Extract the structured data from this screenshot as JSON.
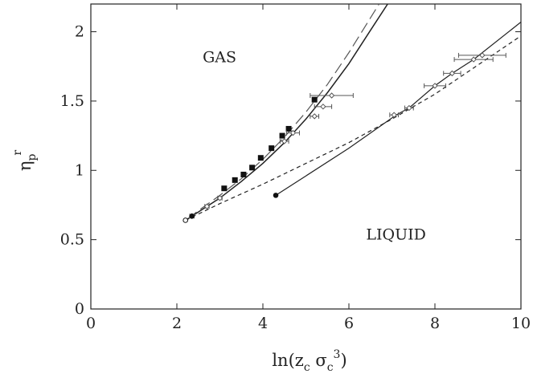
{
  "chart_data": {
    "type": "scatter",
    "xlabel": {
      "base": "ln(z",
      "sub1": "c",
      "mid": " σ",
      "sub2": "c",
      "sup": "3",
      "end": ")"
    },
    "ylabel": {
      "base": "η",
      "sub": "p",
      "sup": "r"
    },
    "xlim": [
      0,
      10
    ],
    "ylim": [
      0,
      2.2
    ],
    "xticks": [
      0,
      2,
      4,
      6,
      8,
      10
    ],
    "yticks": [
      0,
      0.5,
      1,
      1.5,
      2
    ],
    "xtick_labels": [
      "0",
      "2",
      "4",
      "6",
      "8",
      "10"
    ],
    "ytick_labels": [
      "0",
      "0.5",
      "1",
      "1.5",
      "2"
    ],
    "grid": false,
    "regions": [
      {
        "text": "GAS",
        "x": 2.6,
        "y": 1.78
      },
      {
        "text": "LIQUID",
        "x": 6.4,
        "y": 0.5
      }
    ],
    "series": [
      {
        "style": "solid-curve",
        "color": "#222222",
        "points": [
          [
            2.25,
            0.65
          ],
          [
            2.5,
            0.7
          ],
          [
            3.0,
            0.8
          ],
          [
            3.5,
            0.92
          ],
          [
            4.0,
            1.05
          ],
          [
            4.5,
            1.2
          ],
          [
            5.0,
            1.37
          ],
          [
            5.5,
            1.56
          ],
          [
            6.0,
            1.77
          ],
          [
            6.5,
            2.01
          ],
          [
            6.9,
            2.2
          ]
        ]
      },
      {
        "style": "long-dash-curve",
        "color": "#555555",
        "points": [
          [
            2.25,
            0.65
          ],
          [
            2.5,
            0.71
          ],
          [
            3.0,
            0.82
          ],
          [
            3.5,
            0.94
          ],
          [
            4.0,
            1.08
          ],
          [
            4.5,
            1.24
          ],
          [
            5.0,
            1.42
          ],
          [
            5.5,
            1.62
          ],
          [
            6.0,
            1.85
          ],
          [
            6.5,
            2.1
          ],
          [
            6.7,
            2.2
          ]
        ]
      },
      {
        "style": "short-dash-curve",
        "color": "#222222",
        "points": [
          [
            2.2,
            0.64
          ],
          [
            3.0,
            0.76
          ],
          [
            4.0,
            0.9
          ],
          [
            5.0,
            1.05
          ],
          [
            6.0,
            1.2
          ],
          [
            7.0,
            1.37
          ],
          [
            8.0,
            1.55
          ],
          [
            9.0,
            1.76
          ],
          [
            10.0,
            1.97
          ]
        ]
      },
      {
        "style": "solid-line-markers",
        "color": "#222222",
        "points": [
          [
            4.3,
            0.82
          ],
          [
            5.0,
            0.96
          ],
          [
            6.0,
            1.16
          ],
          [
            7.1,
            1.4
          ],
          [
            7.4,
            1.45
          ],
          [
            8.0,
            1.61
          ],
          [
            8.4,
            1.7
          ],
          [
            8.9,
            1.8
          ],
          [
            10.0,
            2.07
          ]
        ]
      },
      {
        "style": "filled-squares",
        "color": "#111111",
        "points": [
          [
            3.1,
            0.87
          ],
          [
            3.35,
            0.93
          ],
          [
            3.55,
            0.97
          ],
          [
            3.75,
            1.02
          ],
          [
            3.95,
            1.09
          ],
          [
            4.2,
            1.16
          ],
          [
            4.45,
            1.25
          ],
          [
            4.6,
            1.3
          ],
          [
            5.2,
            1.51
          ]
        ]
      },
      {
        "style": "open-diamonds-errorbars",
        "color": "#555555",
        "points": [
          [
            2.35,
            0.67
          ],
          [
            2.7,
            0.74
          ],
          [
            3.0,
            0.8
          ],
          [
            4.5,
            1.21
          ],
          [
            4.7,
            1.27
          ],
          [
            5.2,
            1.39
          ],
          [
            5.4,
            1.46
          ],
          [
            5.6,
            1.54
          ],
          [
            7.05,
            1.4
          ],
          [
            7.4,
            1.45
          ],
          [
            8.0,
            1.61
          ],
          [
            8.4,
            1.7
          ],
          [
            8.9,
            1.8
          ],
          [
            9.1,
            1.83
          ]
        ],
        "xerr": [
          0.05,
          0.05,
          0.05,
          0.1,
          0.15,
          0.1,
          0.2,
          0.5,
          0.1,
          0.1,
          0.25,
          0.2,
          0.45,
          0.55
        ]
      },
      {
        "style": "endpoints",
        "color": "#111111",
        "points": [
          [
            2.2,
            0.64
          ],
          [
            2.35,
            0.67
          ],
          [
            4.3,
            0.82
          ]
        ]
      }
    ]
  }
}
